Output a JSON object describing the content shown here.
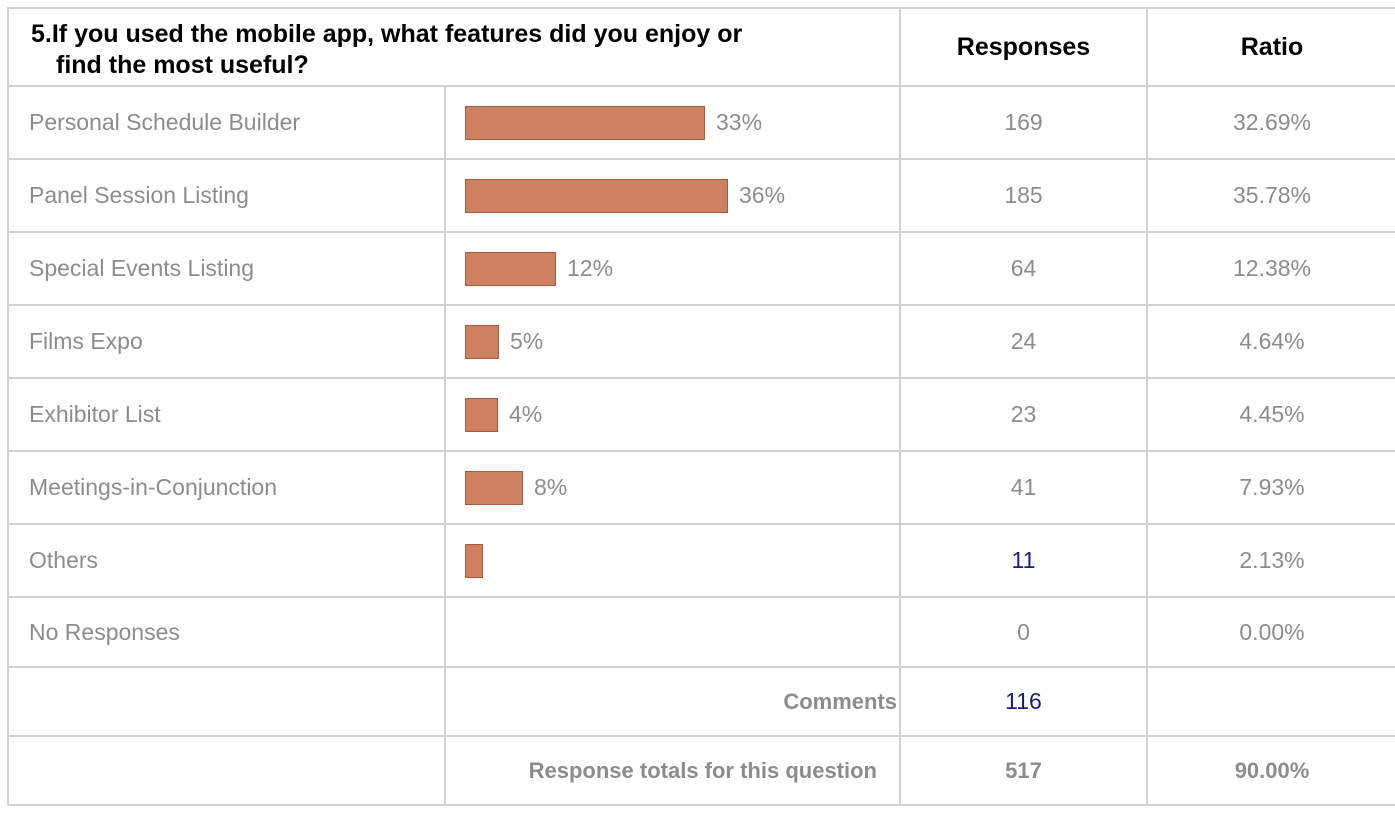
{
  "question": {
    "title_line1": "5.If you used the mobile app, what features did you enjoy or",
    "title_line2": "find the most useful?",
    "col_responses": "Responses",
    "col_ratio": "Ratio"
  },
  "rows": [
    {
      "label": "Personal Schedule Builder",
      "pct_label": "33%",
      "bar_fraction": 0.3269,
      "responses": "169",
      "ratio": "32.69%"
    },
    {
      "label": "Panel Session Listing",
      "pct_label": "36%",
      "bar_fraction": 0.3578,
      "responses": "185",
      "ratio": "35.78%"
    },
    {
      "label": "Special Events Listing",
      "pct_label": "12%",
      "bar_fraction": 0.1238,
      "responses": "64",
      "ratio": "12.38%"
    },
    {
      "label": "Films Expo",
      "pct_label": "5%",
      "bar_fraction": 0.0464,
      "responses": "24",
      "ratio": "4.64%"
    },
    {
      "label": "Exhibitor List",
      "pct_label": "4%",
      "bar_fraction": 0.0445,
      "responses": "23",
      "ratio": "4.45%"
    },
    {
      "label": "Meetings-in-Conjunction",
      "pct_label": "8%",
      "bar_fraction": 0.0793,
      "responses": "41",
      "ratio": "7.93%"
    },
    {
      "label": "Others",
      "pct_label": "",
      "bar_fraction": 0.0213,
      "responses": "11",
      "ratio": "2.13%"
    },
    {
      "label": "No Responses",
      "pct_label": "",
      "bar_fraction": 0,
      "responses": "0",
      "ratio": "0.00%"
    }
  ],
  "comments": {
    "label": "Comments",
    "value": "116"
  },
  "totals": {
    "label": "Response totals for this question",
    "responses": "517",
    "ratio": "90.00%"
  },
  "colors": {
    "bar_fill": "#cd8163",
    "bar_border": "#a85a40",
    "link": "#1a1a80",
    "muted_text": "#8c8c8c",
    "grid": "#d2d2d2"
  }
}
